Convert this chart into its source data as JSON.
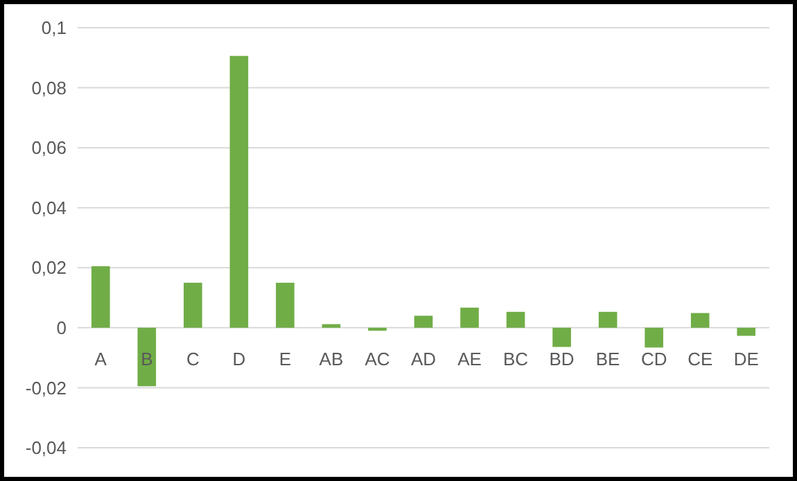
{
  "chart_data": {
    "type": "bar",
    "categories": [
      "A",
      "B",
      "C",
      "D",
      "E",
      "AB",
      "AC",
      "AD",
      "AE",
      "BC",
      "BD",
      "BE",
      "CD",
      "CE",
      "DE"
    ],
    "values": [
      0.0205,
      -0.0195,
      0.015,
      0.0906,
      0.015,
      0.0012,
      -0.001,
      0.004,
      0.0067,
      0.0053,
      -0.0064,
      0.0053,
      -0.0066,
      0.0049,
      -0.0027
    ],
    "color": "#70ad47",
    "ylim": [
      -0.04,
      0.1
    ],
    "yticks": [
      {
        "value": -0.04,
        "label": "-0,04"
      },
      {
        "value": -0.02,
        "label": "-0,02"
      },
      {
        "value": 0,
        "label": "0"
      },
      {
        "value": 0.02,
        "label": "0,02"
      },
      {
        "value": 0.04,
        "label": "0,04"
      },
      {
        "value": 0.06,
        "label": "0,06"
      },
      {
        "value": 0.08,
        "label": "0,08"
      },
      {
        "value": 0.1,
        "label": "0,1"
      }
    ],
    "grid": true
  }
}
